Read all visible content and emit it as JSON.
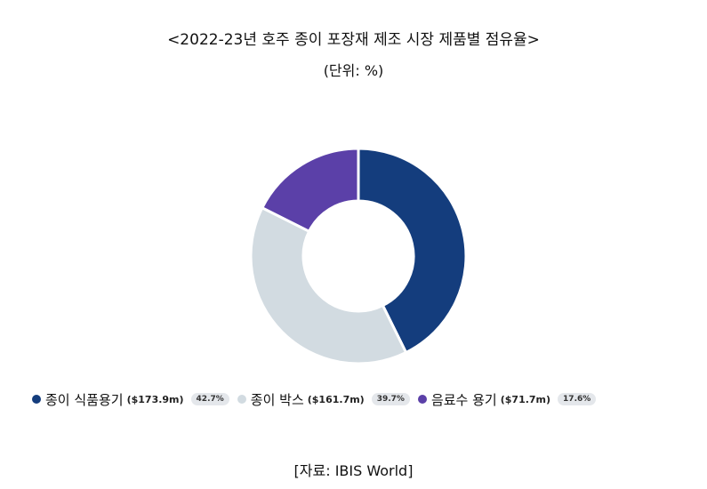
{
  "title": "<2022-23년 호주 종이 포장재 제조 시장 제품별 점유율>",
  "unit_note": "(단위: %)",
  "source": "[자료: IBIS World]",
  "chart_data": {
    "type": "pie",
    "donut": true,
    "categories": [
      "종이 식품용기",
      "종이 박스",
      "음료수 용기"
    ],
    "values": [
      42.7,
      39.7,
      17.6
    ],
    "amounts": [
      "($173.9m)",
      "($161.7m)",
      "($71.7m)"
    ],
    "percent_labels": [
      "42.7%",
      "39.7%",
      "17.6%"
    ],
    "colors": [
      "#143d7d",
      "#d2dbe1",
      "#5b40a8"
    ],
    "legend_position": "bottom-left"
  }
}
